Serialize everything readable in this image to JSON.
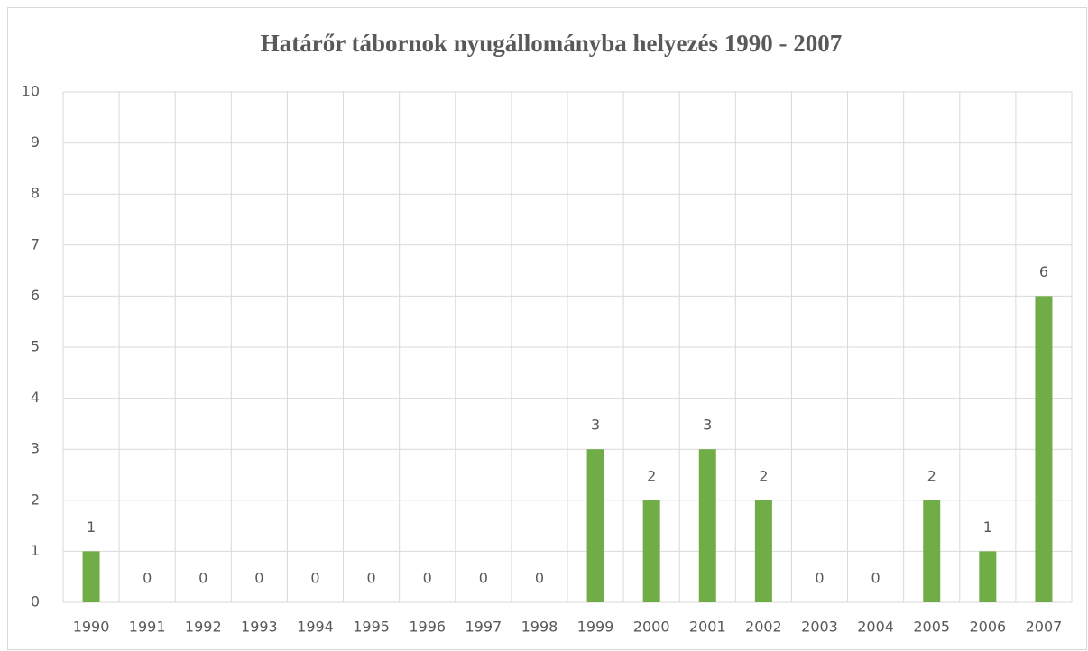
{
  "chart_data": {
    "type": "bar",
    "title": "Határőr tábornok nyugállományba helyezés 1990 - 2007",
    "categories": [
      "1990",
      "1991",
      "1992",
      "1993",
      "1994",
      "1995",
      "1996",
      "1997",
      "1998",
      "1999",
      "2000",
      "2001",
      "2002",
      "2003",
      "2004",
      "2005",
      "2006",
      "2007"
    ],
    "values": [
      1,
      0,
      0,
      0,
      0,
      0,
      0,
      0,
      0,
      3,
      2,
      3,
      2,
      0,
      0,
      2,
      1,
      6
    ],
    "color": "#70ad47",
    "ylim": [
      0,
      10
    ],
    "yticks": [
      0,
      1,
      2,
      3,
      4,
      5,
      6,
      7,
      8,
      9,
      10
    ],
    "grid": true
  }
}
